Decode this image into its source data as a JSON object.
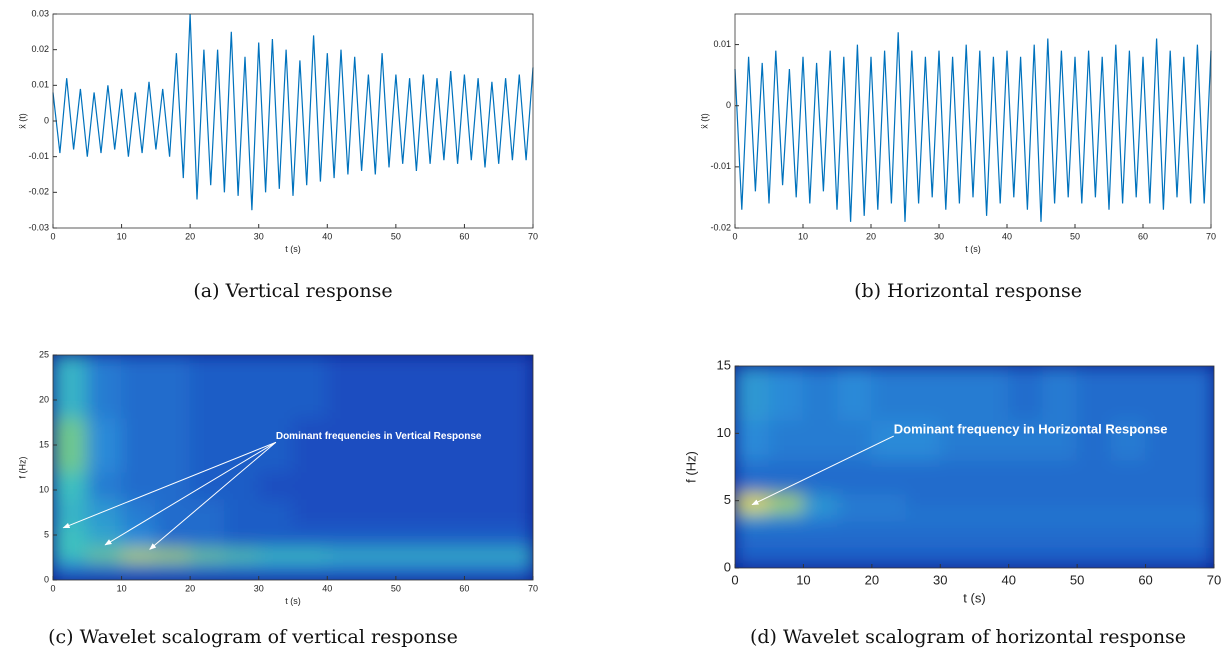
{
  "chart_data": [
    {
      "type": "line",
      "caption": "(a) Vertical response",
      "xlabel": "t (s)",
      "ylabel": "ẍ (t)",
      "color": "#0072bd",
      "xlim": [
        0,
        70
      ],
      "xticks": [
        0,
        10,
        20,
        30,
        40,
        50,
        60,
        70
      ],
      "ylim": [
        -0.03,
        0.03
      ],
      "yticks": [
        -0.03,
        -0.02,
        -0.01,
        0,
        0.01,
        0.02,
        0.03
      ],
      "x": [
        0,
        1,
        2,
        3,
        4,
        5,
        6,
        7,
        8,
        9,
        10,
        11,
        12,
        13,
        14,
        15,
        16,
        17,
        18,
        19,
        20,
        21,
        22,
        23,
        24,
        25,
        26,
        27,
        28,
        29,
        30,
        31,
        32,
        33,
        34,
        35,
        36,
        37,
        38,
        39,
        40,
        41,
        42,
        43,
        44,
        45,
        46,
        47,
        48,
        49,
        50,
        51,
        52,
        53,
        54,
        55,
        56,
        57,
        58,
        59,
        60,
        61,
        62,
        63,
        64,
        65,
        66,
        67,
        68,
        69,
        70
      ],
      "values": [
        0.008,
        -0.009,
        0.012,
        -0.008,
        0.009,
        -0.01,
        0.008,
        -0.009,
        0.01,
        -0.008,
        0.009,
        -0.01,
        0.008,
        -0.009,
        0.011,
        -0.008,
        0.009,
        -0.01,
        0.019,
        -0.016,
        0.03,
        -0.022,
        0.02,
        -0.018,
        0.02,
        -0.02,
        0.025,
        -0.021,
        0.018,
        -0.025,
        0.022,
        -0.02,
        0.023,
        -0.019,
        0.02,
        -0.021,
        0.017,
        -0.018,
        0.024,
        -0.017,
        0.019,
        -0.016,
        0.02,
        -0.015,
        0.018,
        -0.014,
        0.013,
        -0.015,
        0.019,
        -0.013,
        0.013,
        -0.012,
        0.012,
        -0.014,
        0.013,
        -0.012,
        0.012,
        -0.011,
        0.014,
        -0.012,
        0.013,
        -0.011,
        0.012,
        -0.013,
        0.011,
        -0.012,
        0.012,
        -0.011,
        0.013,
        -0.011,
        0.015
      ]
    },
    {
      "type": "line",
      "caption": "(b) Horizontal response",
      "xlabel": "t (s)",
      "ylabel": "ẍ (t)",
      "color": "#0072bd",
      "xlim": [
        0,
        70
      ],
      "xticks": [
        0,
        10,
        20,
        30,
        40,
        50,
        60,
        70
      ],
      "ylim": [
        -0.02,
        0.015
      ],
      "yticks": [
        -0.02,
        -0.01,
        0,
        0.01
      ],
      "x": [
        0,
        1,
        2,
        3,
        4,
        5,
        6,
        7,
        8,
        9,
        10,
        11,
        12,
        13,
        14,
        15,
        16,
        17,
        18,
        19,
        20,
        21,
        22,
        23,
        24,
        25,
        26,
        27,
        28,
        29,
        30,
        31,
        32,
        33,
        34,
        35,
        36,
        37,
        38,
        39,
        40,
        41,
        42,
        43,
        44,
        45,
        46,
        47,
        48,
        49,
        50,
        51,
        52,
        53,
        54,
        55,
        56,
        57,
        58,
        59,
        60,
        61,
        62,
        63,
        64,
        65,
        66,
        67,
        68,
        69,
        70
      ],
      "values": [
        0.006,
        -0.017,
        0.008,
        -0.014,
        0.007,
        -0.016,
        0.009,
        -0.013,
        0.006,
        -0.015,
        0.008,
        -0.016,
        0.007,
        -0.014,
        0.009,
        -0.017,
        0.008,
        -0.019,
        0.01,
        -0.018,
        0.008,
        -0.017,
        0.009,
        -0.016,
        0.012,
        -0.019,
        0.009,
        -0.016,
        0.008,
        -0.015,
        0.009,
        -0.017,
        0.008,
        -0.016,
        0.01,
        -0.015,
        0.009,
        -0.018,
        0.008,
        -0.016,
        0.009,
        -0.015,
        0.008,
        -0.017,
        0.01,
        -0.019,
        0.011,
        -0.016,
        0.009,
        -0.015,
        0.008,
        -0.016,
        0.009,
        -0.015,
        0.008,
        -0.017,
        0.01,
        -0.016,
        0.009,
        -0.015,
        0.008,
        -0.016,
        0.011,
        -0.017,
        0.009,
        -0.015,
        0.008,
        -0.016,
        0.01,
        -0.016,
        0.009
      ]
    },
    {
      "type": "heatmap",
      "caption": "(c) Wavelet scalogram of vertical response",
      "xlabel": "t (s)",
      "ylabel": "f (Hz)",
      "colormap": [
        "#0c1d8c",
        "#1a4ec0",
        "#2a8ad8",
        "#3cc0c0",
        "#a0d060",
        "#f8e030"
      ],
      "xlim": [
        0,
        70
      ],
      "xticks": [
        0,
        10,
        20,
        30,
        40,
        50,
        60,
        70
      ],
      "ylim": [
        0,
        25
      ],
      "yticks": [
        0,
        5,
        10,
        15,
        20,
        25
      ],
      "xedges": [
        0,
        5,
        10,
        15,
        20,
        25,
        30,
        35,
        40,
        45,
        50,
        55,
        60,
        65,
        70
      ],
      "yedges": [
        0,
        2,
        3.5,
        6,
        9,
        12,
        18,
        25
      ],
      "z": [
        [
          0.3,
          0.3,
          0.3,
          0.3,
          0.3,
          0.3,
          0.3,
          0.3,
          0.3,
          0.3,
          0.3,
          0.3,
          0.3,
          0.3
        ],
        [
          0.6,
          0.7,
          0.85,
          0.8,
          0.7,
          0.65,
          0.6,
          0.6,
          0.55,
          0.55,
          0.55,
          0.55,
          0.55,
          0.55
        ],
        [
          0.6,
          0.5,
          0.4,
          0.3,
          0.3,
          0.25,
          0.25,
          0.25,
          0.25,
          0.25,
          0.25,
          0.25,
          0.25,
          0.25
        ],
        [
          0.55,
          0.45,
          0.35,
          0.3,
          0.3,
          0.25,
          0.25,
          0.2,
          0.2,
          0.2,
          0.2,
          0.2,
          0.2,
          0.2
        ],
        [
          0.6,
          0.35,
          0.3,
          0.3,
          0.25,
          0.25,
          0.2,
          0.2,
          0.2,
          0.2,
          0.2,
          0.2,
          0.2,
          0.2
        ],
        [
          0.7,
          0.4,
          0.3,
          0.3,
          0.25,
          0.25,
          0.25,
          0.2,
          0.2,
          0.2,
          0.2,
          0.2,
          0.2,
          0.2
        ],
        [
          0.55,
          0.35,
          0.3,
          0.3,
          0.25,
          0.25,
          0.25,
          0.25,
          0.2,
          0.2,
          0.2,
          0.2,
          0.2,
          0.2
        ]
      ],
      "annotation": {
        "text": "Dominant frequencies in Vertical Response",
        "x": 32.5,
        "y": 15.3,
        "targets": [
          [
            1.5,
            5.8
          ],
          [
            7.6,
            3.9
          ],
          [
            14.1,
            3.4
          ]
        ]
      }
    },
    {
      "type": "heatmap",
      "caption": "(d) Wavelet scalogram of horizontal response",
      "xlabel": "t (s)",
      "ylabel": "f (Hz)",
      "colormap": [
        "#0c1d8c",
        "#1a4ec0",
        "#2a8ad8",
        "#3cc0c0",
        "#a0d060",
        "#f8e030"
      ],
      "xlim": [
        0,
        70
      ],
      "xticks": [
        0,
        10,
        20,
        30,
        40,
        50,
        60,
        70
      ],
      "ylim": [
        0,
        15
      ],
      "yticks": [
        0,
        5,
        10,
        15
      ],
      "xedges": [
        0,
        5,
        10,
        15,
        20,
        25,
        30,
        35,
        40,
        45,
        50,
        55,
        60,
        65,
        70
      ],
      "yedges": [
        0,
        1.5,
        3.5,
        4.2,
        5.5,
        8,
        11,
        15
      ],
      "z": [
        [
          0.25,
          0.25,
          0.25,
          0.25,
          0.25,
          0.25,
          0.25,
          0.25,
          0.25,
          0.25,
          0.25,
          0.25,
          0.25,
          0.25
        ],
        [
          0.3,
          0.3,
          0.3,
          0.3,
          0.3,
          0.3,
          0.3,
          0.3,
          0.3,
          0.3,
          0.3,
          0.3,
          0.3,
          0.3
        ],
        [
          0.5,
          0.45,
          0.4,
          0.35,
          0.35,
          0.35,
          0.35,
          0.35,
          0.35,
          0.35,
          0.35,
          0.35,
          0.35,
          0.35
        ],
        [
          0.95,
          0.8,
          0.45,
          0.35,
          0.35,
          0.3,
          0.3,
          0.3,
          0.3,
          0.3,
          0.3,
          0.3,
          0.3,
          0.3
        ],
        [
          0.3,
          0.3,
          0.3,
          0.3,
          0.3,
          0.3,
          0.3,
          0.3,
          0.3,
          0.3,
          0.3,
          0.3,
          0.3,
          0.3
        ],
        [
          0.4,
          0.35,
          0.35,
          0.35,
          0.4,
          0.4,
          0.35,
          0.35,
          0.35,
          0.35,
          0.3,
          0.35,
          0.3,
          0.3
        ],
        [
          0.45,
          0.4,
          0.35,
          0.4,
          0.35,
          0.35,
          0.35,
          0.35,
          0.3,
          0.35,
          0.3,
          0.3,
          0.3,
          0.3
        ]
      ],
      "annotation": {
        "text": "Dominant frequency in Horizontal Response",
        "x": 23.2,
        "y": 9.8,
        "targets": [
          [
            2.5,
            4.7
          ]
        ]
      }
    }
  ]
}
